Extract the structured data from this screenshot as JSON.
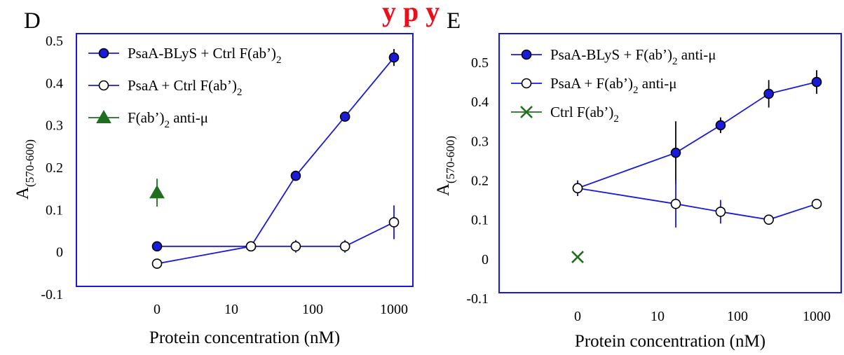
{
  "banner": "y p             y",
  "colors": {
    "blue": "#1a1adb",
    "green": "#1e6e1e",
    "black": "#000000",
    "frame": "#1a1adb",
    "banner": "#e8101a"
  },
  "chart_data": [
    {
      "type": "line",
      "panel_label": "D",
      "xlabel": "Protein concentration (nM)",
      "ylabel_main": "A",
      "ylabel_sub": "(570-600)",
      "x_scale": "log with zero position",
      "x_ticks": [
        "0",
        "10",
        "100",
        "1000"
      ],
      "x_tick_values": [
        0,
        10,
        100,
        1000
      ],
      "y_ticks": [
        "-0.1",
        "0",
        "0.1",
        "0.2",
        "0.3",
        "0.4",
        "0.5"
      ],
      "ylim": [
        -0.1,
        0.5
      ],
      "grid": false,
      "legend_position": "top-left",
      "series": [
        {
          "name": "PsaA-BLyS + Ctrl F(ab’)",
          "name_sub": "2",
          "marker": "filled-circle",
          "color": "#1a1adb",
          "marker_fill": "#1a1adb",
          "x": [
            0,
            16,
            62,
            250,
            1000
          ],
          "y": [
            0.013,
            0.013,
            0.18,
            0.32,
            0.46
          ],
          "err": [
            0.005,
            0.005,
            0.008,
            0.01,
            0.02
          ]
        },
        {
          "name": "PsaA + Ctrl F(ab’)",
          "name_sub": "2",
          "marker": "open-circle",
          "color": "#1a1adb",
          "marker_fill": "#ffffff",
          "x": [
            0,
            16,
            62,
            250,
            1000
          ],
          "y": [
            -0.028,
            0.013,
            0.013,
            0.013,
            0.07
          ],
          "err": [
            0.005,
            0.005,
            0.015,
            0.015,
            0.04
          ]
        },
        {
          "name": "F(ab’)",
          "name_sub": "2",
          "name_suffix": " anti-μ",
          "marker": "filled-triangle",
          "color": "#1e6e1e",
          "marker_fill": "#1e6e1e",
          "x": [
            0
          ],
          "y": [
            0.14
          ],
          "err": [
            0.033
          ]
        }
      ]
    },
    {
      "type": "line",
      "panel_label": "E",
      "xlabel": "Protein concentration (nM)",
      "ylabel_main": "A",
      "ylabel_sub": "(570-600)",
      "x_scale": "log with zero position",
      "x_ticks": [
        "0",
        "10",
        "100",
        "1000"
      ],
      "x_tick_values": [
        0,
        10,
        100,
        1000
      ],
      "y_ticks": [
        "-0.1",
        "0",
        "0.1",
        "0.2",
        "0.3",
        "0.4",
        "0.5"
      ],
      "ylim": [
        -0.1,
        0.5
      ],
      "grid": false,
      "legend_position": "top-left",
      "series": [
        {
          "name": "PsaA-BLyS + F(ab’)",
          "name_sub": "2",
          "name_suffix": " anti-μ",
          "marker": "filled-circle",
          "color": "#1a1adb",
          "marker_fill": "#1a1adb",
          "x": [
            0,
            16,
            62,
            250,
            1000
          ],
          "y": [
            0.18,
            0.27,
            0.34,
            0.42,
            0.45
          ],
          "err": [
            0.02,
            0.08,
            0.02,
            0.035,
            0.03
          ]
        },
        {
          "name": "PsaA + F(ab’)",
          "name_sub": "2",
          "name_suffix": " anti-μ",
          "marker": "open-circle",
          "color": "#1a1adb",
          "marker_fill": "#ffffff",
          "x": [
            0,
            16,
            62,
            250,
            1000
          ],
          "y": [
            0.18,
            0.14,
            0.12,
            0.1,
            0.14
          ],
          "err": [
            0.02,
            0.06,
            0.03,
            0.005,
            0.005
          ]
        },
        {
          "name": "Ctrl F(ab’)",
          "name_sub": "2",
          "marker": "x",
          "color": "#1e6e1e",
          "marker_fill": "#1e6e1e",
          "x": [
            0
          ],
          "y": [
            0.005
          ],
          "err": [
            0
          ]
        }
      ]
    }
  ]
}
